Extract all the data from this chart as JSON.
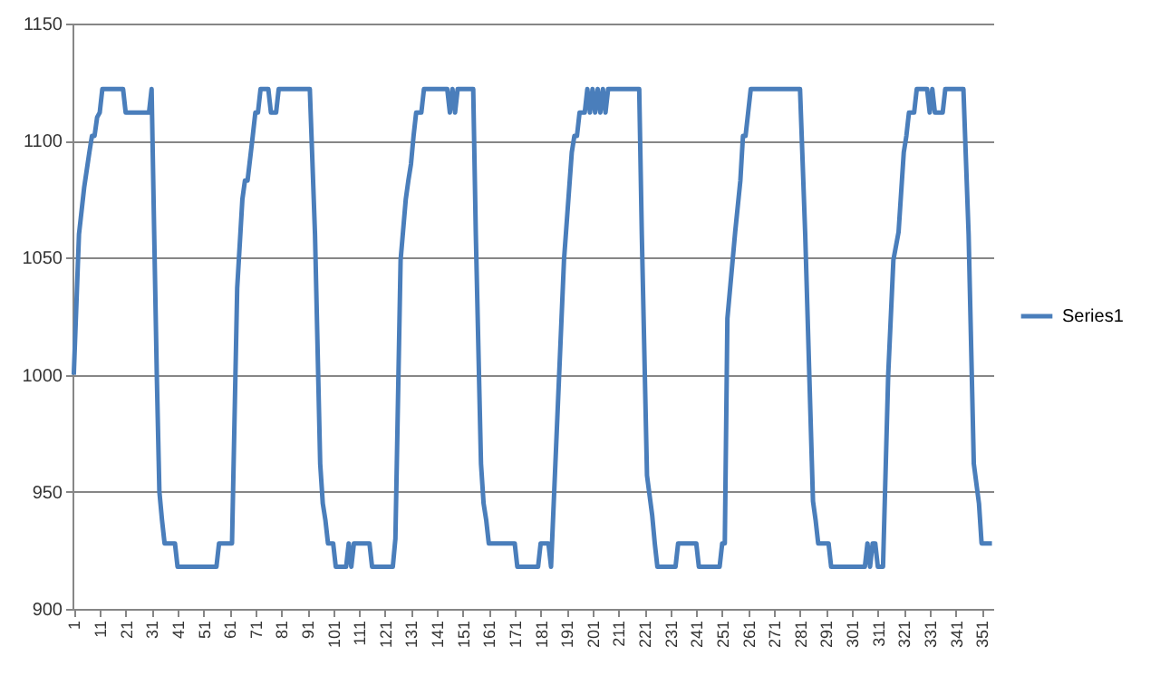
{
  "chart_data": {
    "type": "line",
    "legend": "right",
    "grid": "y",
    "marker": "none",
    "line_style": "solid",
    "xlim": [
      0.5,
      355.5
    ],
    "xticks": [
      1,
      11,
      21,
      31,
      41,
      51,
      61,
      71,
      81,
      91,
      101,
      111,
      121,
      131,
      141,
      151,
      161,
      171,
      181,
      191,
      201,
      211,
      221,
      231,
      241,
      251,
      261,
      271,
      281,
      291,
      301,
      311,
      321,
      331,
      341,
      351
    ],
    "ylim": [
      900,
      1150
    ],
    "yticks": [
      900,
      950,
      1000,
      1050,
      1100,
      1150
    ],
    "x": [
      1,
      3,
      5,
      7,
      8,
      9,
      10,
      11,
      12,
      20,
      21,
      30,
      31,
      32,
      33,
      34,
      35,
      36,
      40,
      41,
      56,
      57,
      62,
      64,
      66,
      67,
      68,
      70,
      71,
      72,
      73,
      76,
      77,
      79,
      80,
      92,
      94,
      96,
      97,
      98,
      99,
      101,
      102,
      106,
      107,
      108,
      109,
      115,
      116,
      124,
      125,
      127,
      129,
      130,
      131,
      132,
      133,
      135,
      136,
      145,
      146,
      147,
      148,
      149,
      155,
      156,
      158,
      159,
      160,
      161,
      171,
      172,
      180,
      181,
      184,
      185,
      190,
      193,
      194,
      195,
      196,
      198,
      199,
      200,
      201,
      202,
      203,
      204,
      205,
      206,
      207,
      219,
      220,
      222,
      224,
      225,
      226,
      233,
      234,
      241,
      242,
      250,
      251,
      252,
      253,
      256,
      258,
      259,
      260,
      261,
      262,
      281,
      283,
      286,
      287,
      288,
      292,
      293,
      306,
      307,
      308,
      309,
      310,
      311,
      313,
      315,
      317,
      319,
      321,
      322,
      323,
      325,
      326,
      330,
      331,
      332,
      333,
      336,
      337,
      344,
      346,
      348,
      350,
      351,
      355
    ],
    "series": [
      {
        "name": "Series1",
        "color": "#4a7ebb",
        "values": [
          1000,
          1060,
          1080,
          1095,
          1102,
          1102,
          1110,
          1112,
          1122,
          1122,
          1112,
          1112,
          1122,
          1060,
          1000,
          950,
          938,
          928,
          928,
          918,
          918,
          928,
          928,
          1037,
          1075,
          1083,
          1083,
          1102,
          1112,
          1112,
          1122,
          1122,
          1112,
          1112,
          1122,
          1122,
          1060,
          962,
          945,
          938,
          928,
          928,
          918,
          918,
          928,
          918,
          928,
          928,
          918,
          918,
          930,
          1049,
          1075,
          1083,
          1090,
          1102,
          1112,
          1112,
          1122,
          1122,
          1112,
          1122,
          1112,
          1122,
          1122,
          1060,
          962,
          945,
          938,
          928,
          928,
          918,
          918,
          928,
          928,
          918,
          1049,
          1095,
          1102,
          1102,
          1112,
          1112,
          1122,
          1112,
          1122,
          1112,
          1122,
          1112,
          1122,
          1112,
          1122,
          1122,
          1060,
          957,
          940,
          928,
          918,
          918,
          928,
          928,
          918,
          918,
          928,
          928,
          1024,
          1061,
          1083,
          1102,
          1102,
          1112,
          1122,
          1122,
          1060,
          946,
          938,
          928,
          928,
          918,
          918,
          928,
          918,
          928,
          928,
          918,
          918,
          1000,
          1049,
          1061,
          1095,
          1102,
          1112,
          1112,
          1122,
          1122,
          1112,
          1122,
          1112,
          1112,
          1122,
          1122,
          1060,
          962,
          945,
          928,
          928
        ]
      }
    ]
  }
}
